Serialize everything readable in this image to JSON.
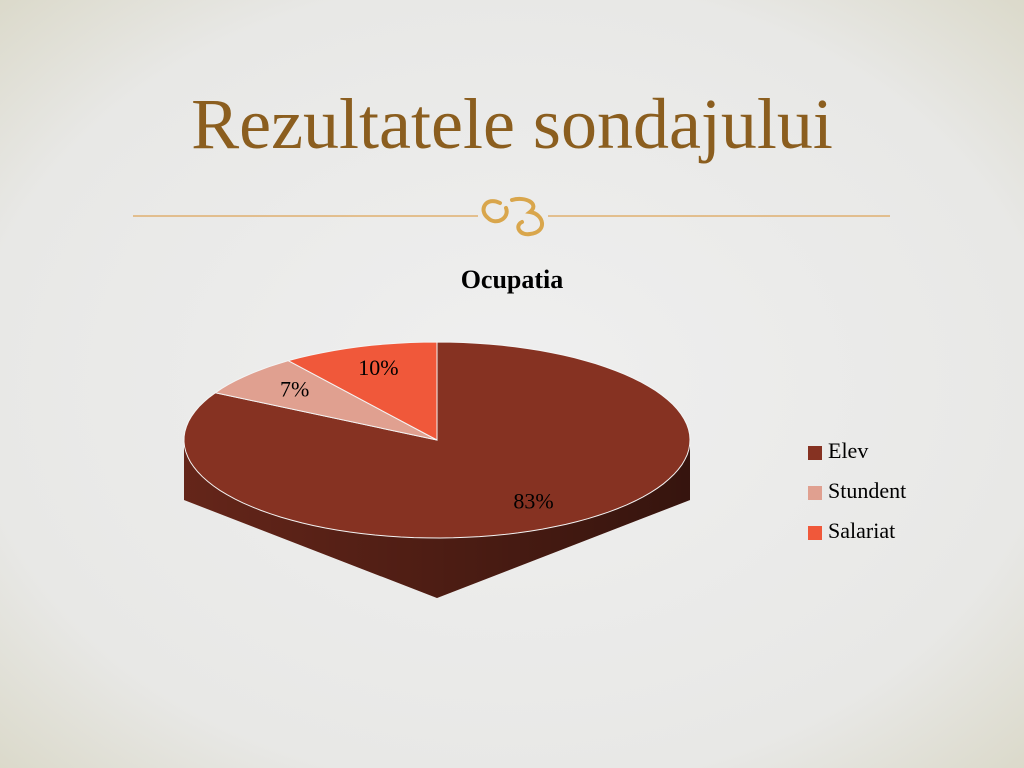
{
  "slide": {
    "title": "Rezultatele sondajului"
  },
  "chart_data": {
    "type": "pie3d",
    "title": "Ocupatia",
    "categories": [
      "Elev",
      "Stundent",
      "Salariat"
    ],
    "values": [
      83,
      7,
      10
    ],
    "value_labels": [
      "83%",
      "7%",
      "10%"
    ],
    "colors": [
      "#863222",
      "#e0a090",
      "#f0583a"
    ],
    "legend": "right"
  }
}
